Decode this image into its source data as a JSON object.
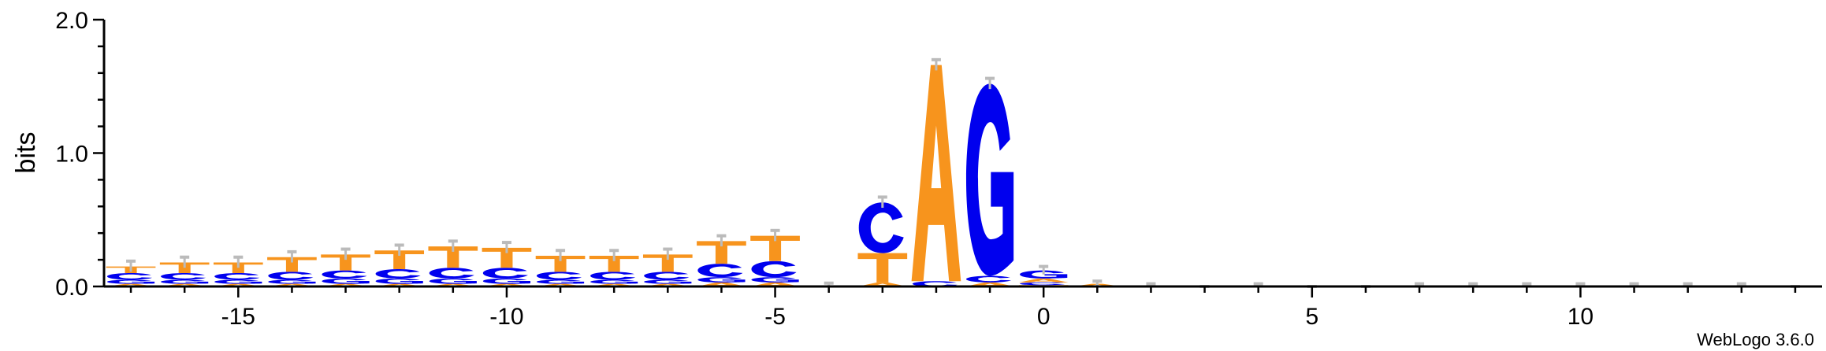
{
  "chart_data": {
    "type": "sequence-logo",
    "ylabel": "bits",
    "ylim": [
      0,
      2.0
    ],
    "y_ticks": [
      {
        "value": 0.0,
        "label": "0.0"
      },
      {
        "value": 1.0,
        "label": "1.0"
      },
      {
        "value": 2.0,
        "label": "2.0"
      }
    ],
    "xlim": [
      -17.5,
      14.5
    ],
    "x_ticks": [
      {
        "value": -15,
        "label": "-15"
      },
      {
        "value": -10,
        "label": "-10"
      },
      {
        "value": -5,
        "label": "-5"
      },
      {
        "value": 0,
        "label": "0"
      },
      {
        "value": 5,
        "label": "5"
      },
      {
        "value": 10,
        "label": "10"
      }
    ],
    "colors": {
      "A": "#f7941d",
      "C": "#0000ee",
      "G": "#0000ee",
      "T": "#f7941d",
      "error_bar": "#bbbbbb"
    },
    "credit": "WebLogo 3.6.0",
    "positions": [
      {
        "pos": -17,
        "letters": [
          {
            "l": "A",
            "h": 0.02
          },
          {
            "l": "G",
            "h": 0.03
          },
          {
            "l": "C",
            "h": 0.05
          },
          {
            "l": "T",
            "h": 0.05
          }
        ],
        "err": 0.04
      },
      {
        "pos": -16,
        "letters": [
          {
            "l": "A",
            "h": 0.02
          },
          {
            "l": "G",
            "h": 0.03
          },
          {
            "l": "C",
            "h": 0.05
          },
          {
            "l": "T",
            "h": 0.08
          }
        ],
        "err": 0.04
      },
      {
        "pos": -15,
        "letters": [
          {
            "l": "A",
            "h": 0.02
          },
          {
            "l": "G",
            "h": 0.03
          },
          {
            "l": "C",
            "h": 0.05
          },
          {
            "l": "T",
            "h": 0.08
          }
        ],
        "err": 0.04
      },
      {
        "pos": -14,
        "letters": [
          {
            "l": "A",
            "h": 0.02
          },
          {
            "l": "G",
            "h": 0.03
          },
          {
            "l": "C",
            "h": 0.06
          },
          {
            "l": "T",
            "h": 0.11
          }
        ],
        "err": 0.04
      },
      {
        "pos": -13,
        "letters": [
          {
            "l": "A",
            "h": 0.02
          },
          {
            "l": "G",
            "h": 0.04
          },
          {
            "l": "C",
            "h": 0.06
          },
          {
            "l": "T",
            "h": 0.12
          }
        ],
        "err": 0.04
      },
      {
        "pos": -12,
        "letters": [
          {
            "l": "A",
            "h": 0.02
          },
          {
            "l": "G",
            "h": 0.04
          },
          {
            "l": "C",
            "h": 0.07
          },
          {
            "l": "T",
            "h": 0.14
          }
        ],
        "err": 0.04
      },
      {
        "pos": -11,
        "letters": [
          {
            "l": "A",
            "h": 0.02
          },
          {
            "l": "G",
            "h": 0.04
          },
          {
            "l": "C",
            "h": 0.08
          },
          {
            "l": "T",
            "h": 0.16
          }
        ],
        "err": 0.04
      },
      {
        "pos": -10,
        "letters": [
          {
            "l": "A",
            "h": 0.02
          },
          {
            "l": "G",
            "h": 0.04
          },
          {
            "l": "C",
            "h": 0.08
          },
          {
            "l": "T",
            "h": 0.15
          }
        ],
        "err": 0.04
      },
      {
        "pos": -9,
        "letters": [
          {
            "l": "A",
            "h": 0.02
          },
          {
            "l": "G",
            "h": 0.03
          },
          {
            "l": "C",
            "h": 0.06
          },
          {
            "l": "T",
            "h": 0.12
          }
        ],
        "err": 0.04
      },
      {
        "pos": -8,
        "letters": [
          {
            "l": "A",
            "h": 0.02
          },
          {
            "l": "G",
            "h": 0.03
          },
          {
            "l": "C",
            "h": 0.06
          },
          {
            "l": "T",
            "h": 0.12
          }
        ],
        "err": 0.04
      },
      {
        "pos": -7,
        "letters": [
          {
            "l": "A",
            "h": 0.02
          },
          {
            "l": "G",
            "h": 0.03
          },
          {
            "l": "C",
            "h": 0.06
          },
          {
            "l": "T",
            "h": 0.13
          }
        ],
        "err": 0.04
      },
      {
        "pos": -6,
        "letters": [
          {
            "l": "A",
            "h": 0.03
          },
          {
            "l": "G",
            "h": 0.04
          },
          {
            "l": "C",
            "h": 0.1
          },
          {
            "l": "T",
            "h": 0.17
          }
        ],
        "err": 0.04
      },
      {
        "pos": -5,
        "letters": [
          {
            "l": "A",
            "h": 0.03
          },
          {
            "l": "G",
            "h": 0.04
          },
          {
            "l": "C",
            "h": 0.12
          },
          {
            "l": "T",
            "h": 0.19
          }
        ],
        "err": 0.04
      },
      {
        "pos": -4,
        "letters": [
          {
            "l": "T",
            "h": 0.005
          }
        ],
        "err": 0.02
      },
      {
        "pos": -3,
        "letters": [
          {
            "l": "A",
            "h": 0.03
          },
          {
            "l": "T",
            "h": 0.22
          },
          {
            "l": "C",
            "h": 0.38
          }
        ],
        "err": 0.04
      },
      {
        "pos": -2,
        "letters": [
          {
            "l": "C",
            "h": 0.04
          },
          {
            "l": "A",
            "h": 1.62
          }
        ],
        "err": 0.04
      },
      {
        "pos": -1,
        "letters": [
          {
            "l": "A",
            "h": 0.03
          },
          {
            "l": "C",
            "h": 0.05
          },
          {
            "l": "G",
            "h": 1.44
          }
        ],
        "err": 0.04
      },
      {
        "pos": 0,
        "letters": [
          {
            "l": "T",
            "h": 0.01
          },
          {
            "l": "C",
            "h": 0.02
          },
          {
            "l": "A",
            "h": 0.03
          },
          {
            "l": "G",
            "h": 0.06
          }
        ],
        "err": 0.03
      },
      {
        "pos": 1,
        "letters": [
          {
            "l": "A",
            "h": 0.02
          }
        ],
        "err": 0.02
      },
      {
        "pos": 2,
        "letters": [],
        "err": 0.02
      },
      {
        "pos": 3,
        "letters": [],
        "err": 0.0
      },
      {
        "pos": 4,
        "letters": [],
        "err": 0.02
      },
      {
        "pos": 5,
        "letters": [],
        "err": 0.0
      },
      {
        "pos": 6,
        "letters": [],
        "err": 0.0
      },
      {
        "pos": 7,
        "letters": [],
        "err": 0.02
      },
      {
        "pos": 8,
        "letters": [],
        "err": 0.02
      },
      {
        "pos": 9,
        "letters": [],
        "err": 0.02
      },
      {
        "pos": 10,
        "letters": [],
        "err": 0.02
      },
      {
        "pos": 11,
        "letters": [],
        "err": 0.02
      },
      {
        "pos": 12,
        "letters": [],
        "err": 0.02
      },
      {
        "pos": 13,
        "letters": [],
        "err": 0.02
      },
      {
        "pos": 14,
        "letters": [],
        "err": 0.0
      }
    ]
  }
}
